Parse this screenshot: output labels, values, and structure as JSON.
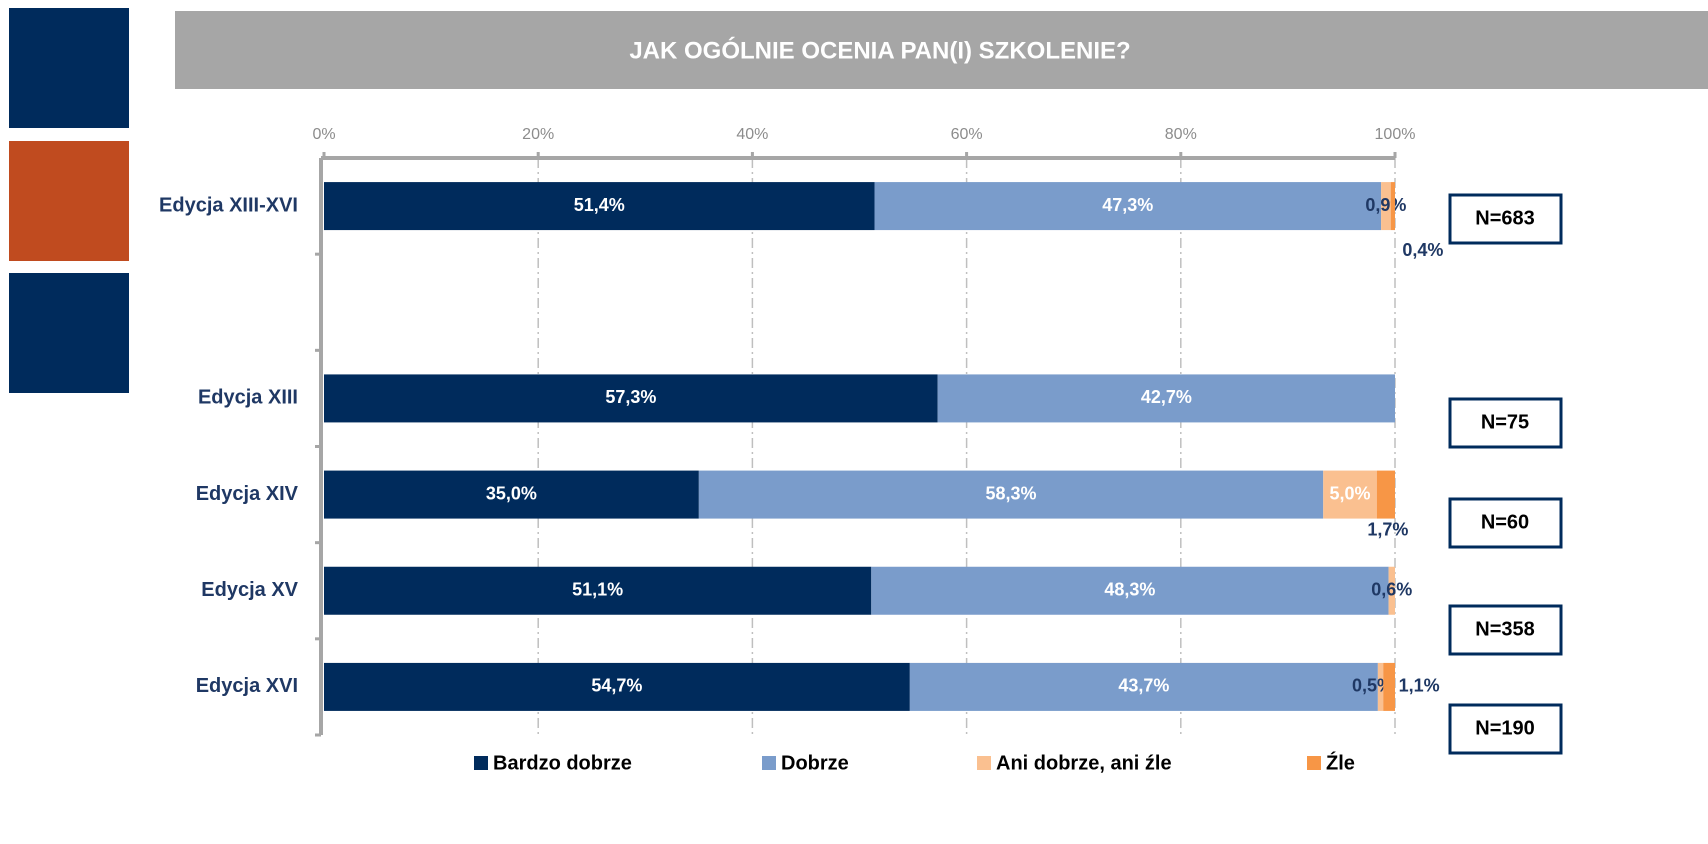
{
  "chart_data": {
    "type": "stacked-bar-horizontal",
    "title": "JAK OGÓLNIE OCENIA PAN(I) SZKOLENIE?",
    "categories": [
      "Edycja XIII-XVI",
      null,
      "Edycja XIII",
      "Edycja XIV",
      "Edycja XV",
      "Edycja XVI"
    ],
    "series": [
      {
        "name": "Bardzo dobrze",
        "color": "#002b5c",
        "values": [
          51.4,
          null,
          57.3,
          35.0,
          51.1,
          54.7
        ],
        "value_labels": [
          "51,4%",
          null,
          "57,3%",
          "35,0%",
          "51,1%",
          "54,7%"
        ]
      },
      {
        "name": "Dobrze",
        "color": "#7a9ccb",
        "values": [
          47.3,
          null,
          42.7,
          58.3,
          48.3,
          43.7
        ],
        "value_labels": [
          "47,3%",
          null,
          "42,7%",
          "58,3%",
          "48,3%",
          "43,7%"
        ]
      },
      {
        "name": "Ani dobrze, ani źle",
        "color": "#fac090",
        "values": [
          0.9,
          null,
          null,
          5.0,
          0.6,
          0.5
        ],
        "value_labels": [
          "0,9%",
          null,
          null,
          "5,0%",
          "0,6%",
          "0,5%"
        ]
      },
      {
        "name": "Źle",
        "color": "#f79646",
        "values": [
          0.4,
          null,
          null,
          1.7,
          null,
          1.1
        ],
        "value_labels": [
          "0,4%",
          null,
          null,
          "1,7%",
          null,
          "1,1%"
        ]
      }
    ],
    "xlim": [
      0,
      100
    ],
    "xticks": [
      {
        "value": 0,
        "label": "0%"
      },
      {
        "value": 20,
        "label": "20%"
      },
      {
        "value": 40,
        "label": "40%"
      },
      {
        "value": 60,
        "label": "60%"
      },
      {
        "value": 80,
        "label": "80%"
      },
      {
        "value": 100,
        "label": "100%"
      }
    ],
    "grid": true,
    "legend": "bottom",
    "annotations": [
      "N=683",
      null,
      "N=75",
      "N=60",
      "N=358",
      "N=190"
    ]
  }
}
